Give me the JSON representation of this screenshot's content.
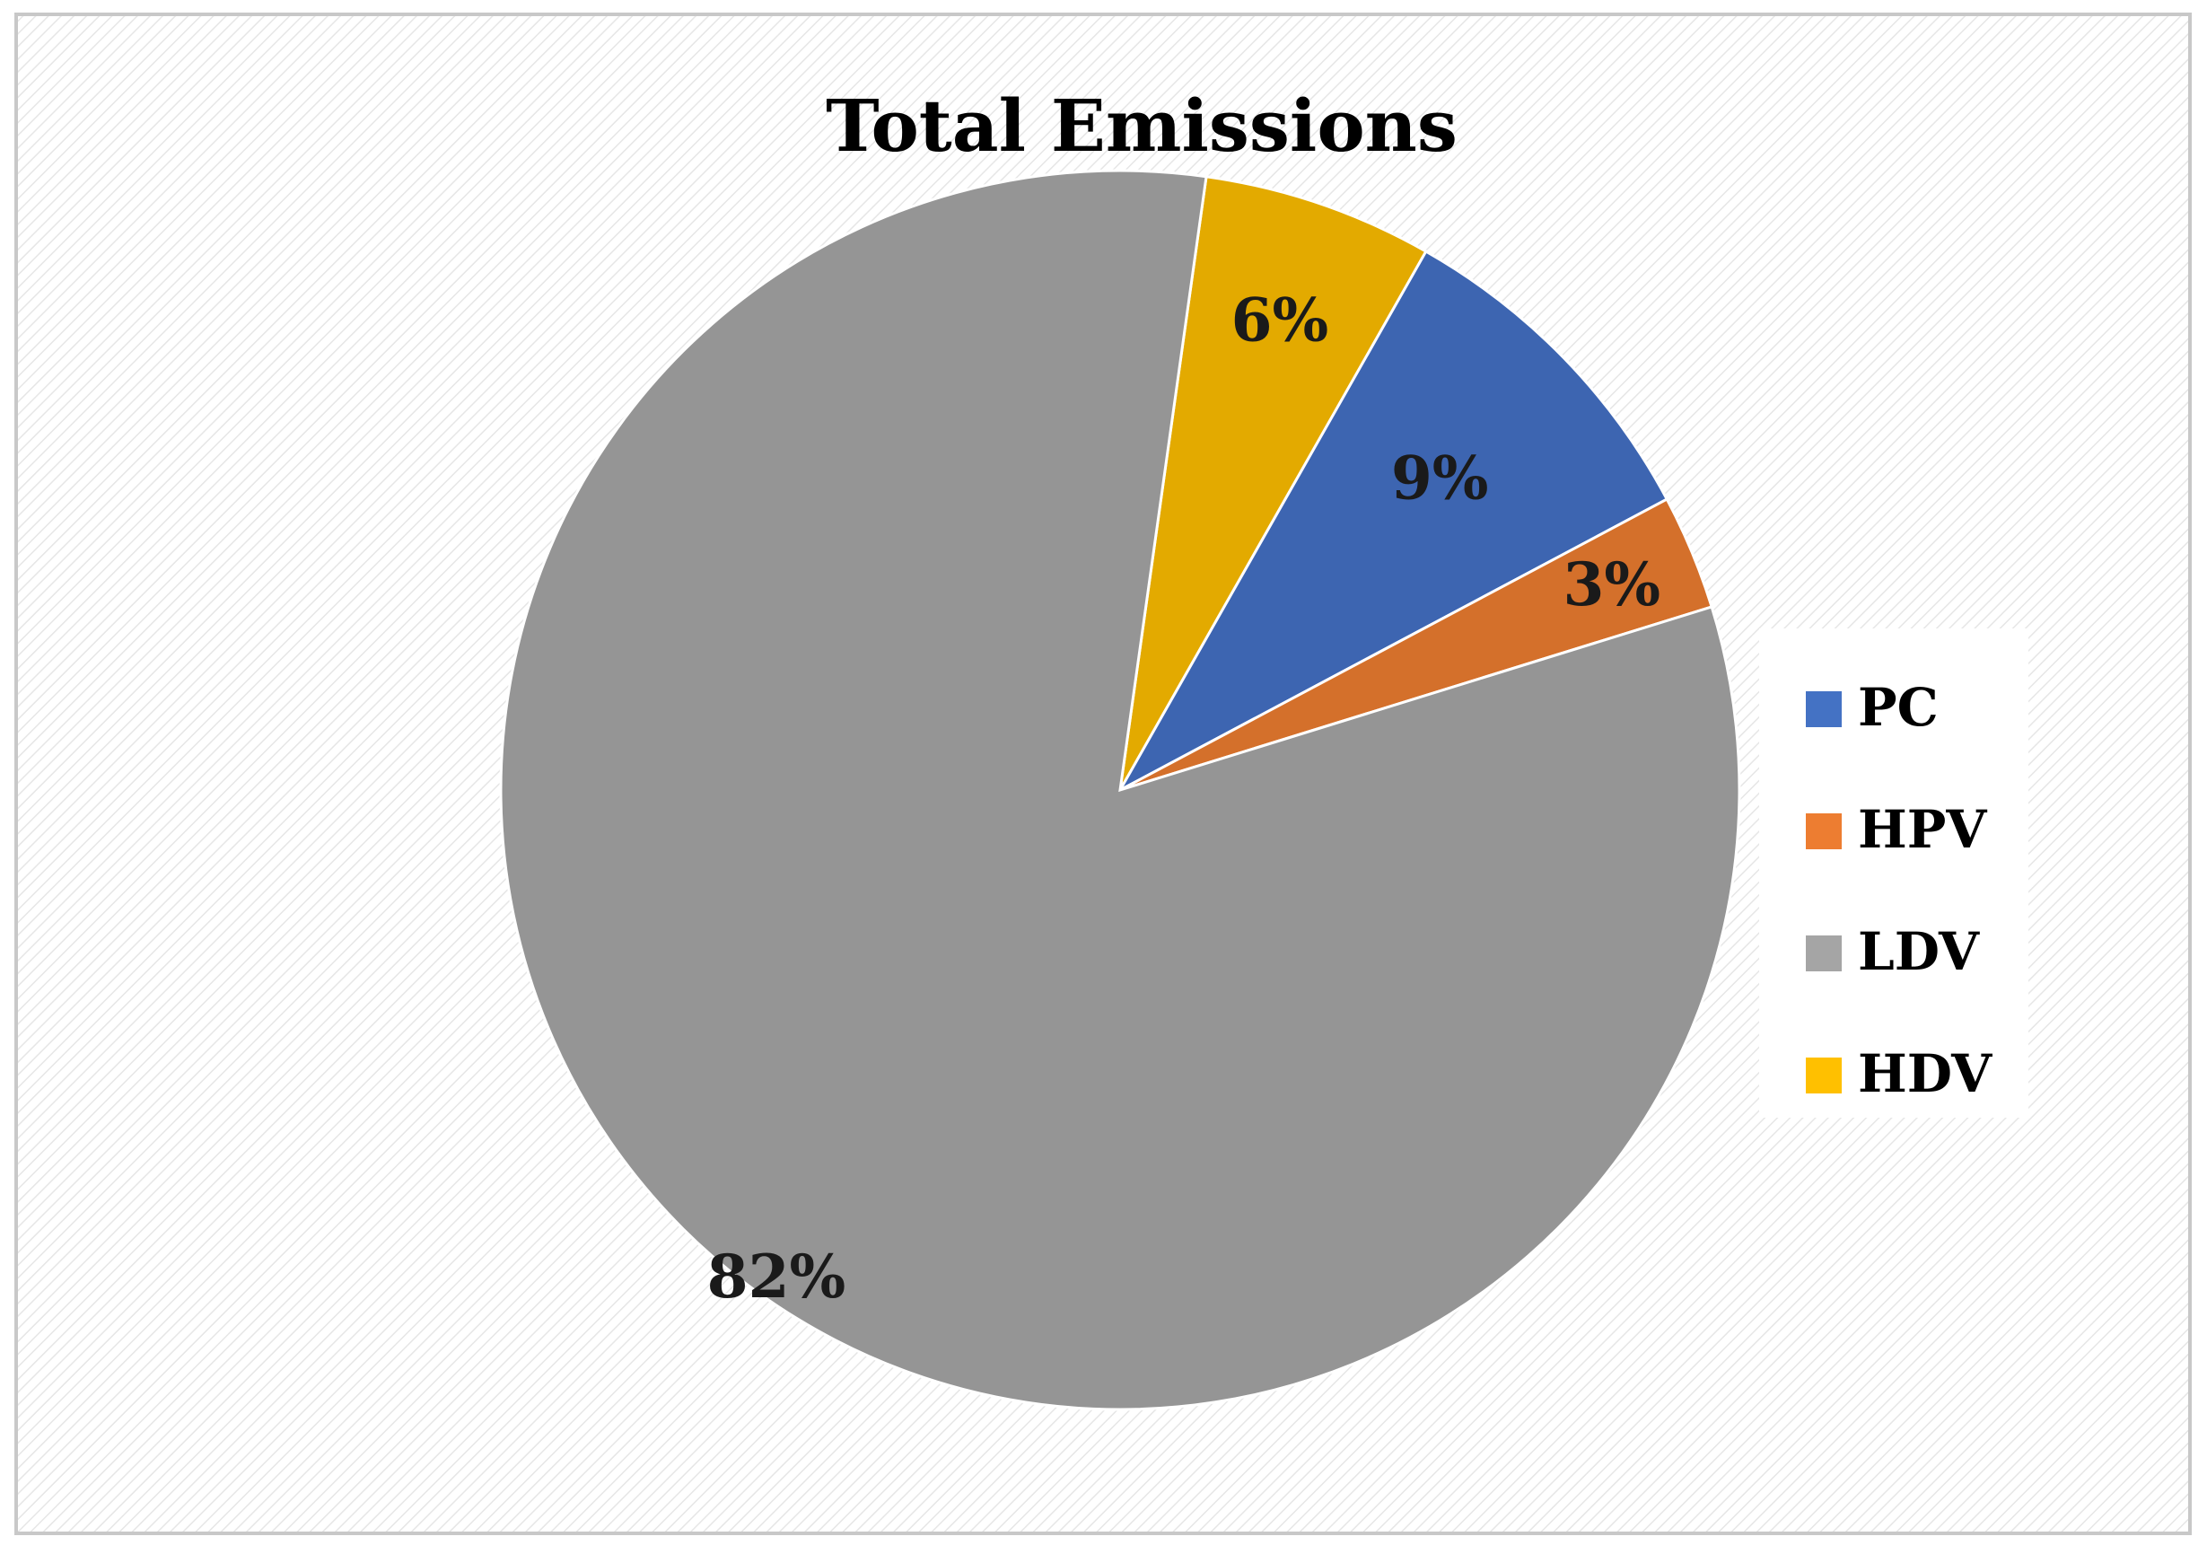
{
  "chart_data": {
    "type": "pie",
    "title": "Total Emissions",
    "start_angle_deg": 8,
    "direction": "clockwise",
    "slices": [
      {
        "name": "HDV",
        "value": 6,
        "label": "6%",
        "color": "#e3aa00"
      },
      {
        "name": "PC",
        "value": 9,
        "label": "9%",
        "color": "#3d65b1"
      },
      {
        "name": "HPV",
        "value": 3,
        "label": "3%",
        "color": "#d4702b"
      },
      {
        "name": "LDV",
        "value": 82,
        "label": "82%",
        "color": "#959595"
      }
    ],
    "legend": {
      "placement": "right",
      "entries": [
        {
          "name": "PC",
          "color": "#4472c4"
        },
        {
          "name": "HPV",
          "color": "#ed7d31"
        },
        {
          "name": "LDV",
          "color": "#a5a5a5"
        },
        {
          "name": "HDV",
          "color": "#ffc000"
        }
      ]
    },
    "background": {
      "fill": "#ffffff",
      "pattern_line": "#e6e6e6",
      "border": "#c8c8c8"
    }
  }
}
